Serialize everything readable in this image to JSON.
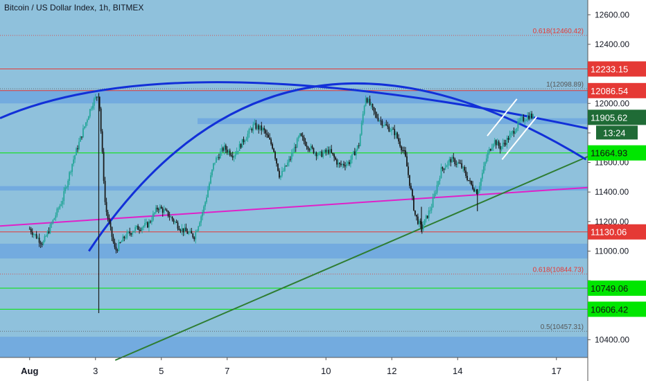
{
  "title": "Bitcoin / US Dollar Index, 1h, BITMEX",
  "chart_data": {
    "type": "candlestick",
    "symbol": "Bitcoin / US Dollar Index",
    "interval": "1h",
    "exchange": "BITMEX",
    "ylim": [
      10280,
      12700
    ],
    "y_ticks": [
      10400,
      10600,
      10800,
      11000,
      11200,
      11400,
      11600,
      11800,
      12000,
      12200,
      12400,
      12600
    ],
    "y_tick_labels": [
      "10400.00",
      "",
      "",
      "11000.00",
      "11200.00",
      "11400.00",
      "11600.00",
      "",
      "12000.00",
      "",
      "12400.00",
      "12600.00"
    ],
    "x_ticks": [
      {
        "label": "Aug",
        "day": 1
      },
      {
        "label": "3",
        "day": 3
      },
      {
        "label": "5",
        "day": 5
      },
      {
        "label": "7",
        "day": 7
      },
      {
        "label": "10",
        "day": 10
      },
      {
        "label": "12",
        "day": 12
      },
      {
        "label": "14",
        "day": 14
      },
      {
        "label": "17",
        "day": 17
      }
    ],
    "price_path": [
      [
        0.0,
        11150
      ],
      [
        0.4,
        11050
      ],
      [
        0.7,
        11200
      ],
      [
        1.0,
        11350
      ],
      [
        1.3,
        11600
      ],
      [
        1.6,
        11800
      ],
      [
        1.9,
        12000
      ],
      [
        2.1,
        12070
      ],
      [
        2.3,
        11300
      ],
      [
        2.6,
        11000
      ],
      [
        2.9,
        11100
      ],
      [
        3.2,
        11150
      ],
      [
        3.6,
        11180
      ],
      [
        3.9,
        11300
      ],
      [
        4.2,
        11250
      ],
      [
        4.6,
        11150
      ],
      [
        5.0,
        11100
      ],
      [
        5.3,
        11300
      ],
      [
        5.6,
        11600
      ],
      [
        5.9,
        11700
      ],
      [
        6.2,
        11650
      ],
      [
        6.5,
        11750
      ],
      [
        6.8,
        11850
      ],
      [
        7.1,
        11820
      ],
      [
        7.4,
        11700
      ],
      [
        7.6,
        11500
      ],
      [
        7.9,
        11620
      ],
      [
        8.2,
        11780
      ],
      [
        8.5,
        11700
      ],
      [
        8.8,
        11650
      ],
      [
        9.1,
        11680
      ],
      [
        9.4,
        11580
      ],
      [
        9.7,
        11600
      ],
      [
        10.0,
        11720
      ],
      [
        10.2,
        12050
      ],
      [
        10.5,
        11920
      ],
      [
        10.8,
        11850
      ],
      [
        11.1,
        11800
      ],
      [
        11.4,
        11650
      ],
      [
        11.7,
        11250
      ],
      [
        11.9,
        11150
      ],
      [
        12.2,
        11300
      ],
      [
        12.5,
        11550
      ],
      [
        12.8,
        11620
      ],
      [
        13.1,
        11580
      ],
      [
        13.4,
        11450
      ],
      [
        13.6,
        11400
      ],
      [
        13.9,
        11650
      ],
      [
        14.1,
        11750
      ],
      [
        14.3,
        11700
      ],
      [
        14.6,
        11780
      ],
      [
        14.9,
        11880
      ],
      [
        15.2,
        11920
      ],
      [
        15.3,
        11905.62
      ]
    ],
    "wicks": [
      {
        "day": 2.1,
        "high": 12070,
        "low": 10580
      },
      {
        "day": 11.9,
        "high": 11300,
        "low": 11130
      },
      {
        "day": 13.6,
        "high": 11420,
        "low": 11270
      }
    ],
    "horizontal_levels": [
      {
        "price": 12233.15,
        "label": "12233.15",
        "color": "#e53935",
        "line": "#e53935"
      },
      {
        "price": 12086.54,
        "label": "12086.54",
        "color": "#e53935",
        "line": "#e53935"
      },
      {
        "price": 11905.62,
        "label": "11905.62",
        "color": "#1f6b36",
        "line": null
      },
      {
        "price": 11664.93,
        "label": "11664.93",
        "color": "#00e600",
        "line": "#00e600"
      },
      {
        "price": 11130.06,
        "label": "11130.06",
        "color": "#e53935",
        "line": "#e53935"
      },
      {
        "price": 10749.06,
        "label": "10749.06",
        "color": "#00e600",
        "line": "#00e600"
      },
      {
        "price": 10606.42,
        "label": "10606.42",
        "color": "#00e600",
        "line": "#00e600"
      }
    ],
    "countdown_label": "13:24",
    "fib_levels": [
      {
        "price": 12460.42,
        "label": "0.618(12460.42)",
        "color": "#e53935"
      },
      {
        "price": 12098.89,
        "label": "1(12098.89)",
        "color": "#555555"
      },
      {
        "price": 10844.73,
        "label": "0.618(10844.73)",
        "color": "#e53935"
      },
      {
        "price": 10457.31,
        "label": "0.5(10457.31)",
        "color": "#555555"
      }
    ],
    "zones": [
      {
        "from": 12000,
        "to": 12090
      },
      {
        "from": 11860,
        "to": 11900
      },
      {
        "from": 11410,
        "to": 11440
      },
      {
        "from": 10950,
        "to": 11050
      },
      {
        "from": 10280,
        "to": 10420
      }
    ],
    "colors": {
      "background": "#8fc1dc",
      "zone": "#6aa3e0",
      "candle_up": "#26a69a",
      "candle_down": "#1a1a1a",
      "arc": "#1230d8",
      "magenta_line": "#e020c8",
      "trend_line": "#2e7d32",
      "channel": "#ffffff"
    }
  }
}
